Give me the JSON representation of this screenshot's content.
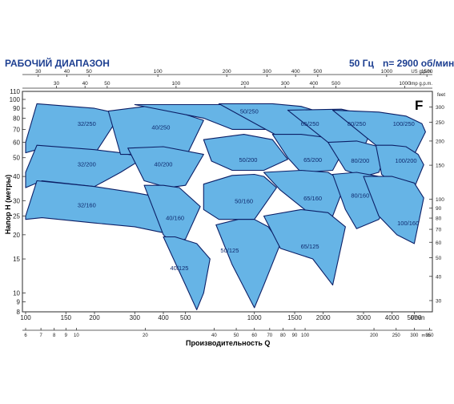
{
  "header": {
    "title": "РАБОЧИЙ ДИАПАЗОН",
    "frequency": "50 Гц",
    "speed": "n= 2900 об/мин",
    "letter": "F"
  },
  "colors": {
    "fill": "#66b4e6",
    "stroke": "#0c1f66",
    "title": "#1d3f91",
    "frame": "#2a2a2a"
  },
  "chart_data": {
    "type": "area",
    "xlabel": "Производительность Q",
    "ylabel": "Напор H (метры)",
    "x_scale": "log",
    "y_scale": "log",
    "xlim": [
      100,
      6000
    ],
    "ylim": [
      8,
      110
    ],
    "grid": false,
    "x_ticks": [
      {
        "value": 100,
        "label": "100"
      },
      {
        "value": 150,
        "label": "150"
      },
      {
        "value": 200,
        "label": "200"
      },
      {
        "value": 300,
        "label": "300"
      },
      {
        "value": 400,
        "label": "400"
      },
      {
        "value": 500,
        "label": "500"
      },
      {
        "value": 1000,
        "label": "1000"
      },
      {
        "value": 1500,
        "label": "1500"
      },
      {
        "value": 2000,
        "label": "2000"
      },
      {
        "value": 3000,
        "label": "3000"
      },
      {
        "value": 4000,
        "label": "4000"
      },
      {
        "value": 5000,
        "label": "5000"
      }
    ],
    "x_unit": "l/min",
    "x2_ticks": [
      {
        "value": 6,
        "label": "6"
      },
      {
        "value": 7,
        "label": "7"
      },
      {
        "value": 8,
        "label": "8"
      },
      {
        "value": 9,
        "label": "9"
      },
      {
        "value": 10,
        "label": "10"
      },
      {
        "value": 20,
        "label": "20"
      },
      {
        "value": 40,
        "label": "40"
      },
      {
        "value": 50,
        "label": "50"
      },
      {
        "value": 60,
        "label": "60"
      },
      {
        "value": 70,
        "label": "70"
      },
      {
        "value": 80,
        "label": "80"
      },
      {
        "value": 90,
        "label": "90"
      },
      {
        "value": 100,
        "label": "100"
      },
      {
        "value": 200,
        "label": "200"
      },
      {
        "value": 250,
        "label": "250"
      },
      {
        "value": 300,
        "label": "300"
      },
      {
        "value": 350,
        "label": "350"
      }
    ],
    "x2_unit": "m³/h",
    "top_us_ticks": [
      {
        "value": 30,
        "label": "30"
      },
      {
        "value": 40,
        "label": "40"
      },
      {
        "value": 50,
        "label": "50"
      },
      {
        "value": 100,
        "label": "100"
      },
      {
        "value": 200,
        "label": "200"
      },
      {
        "value": 300,
        "label": "300"
      },
      {
        "value": 400,
        "label": "400"
      },
      {
        "value": 500,
        "label": "500"
      },
      {
        "value": 1000,
        "label": "1000"
      },
      {
        "value": 1500,
        "label": "1500"
      }
    ],
    "top_us_unit": "US g.p.m.",
    "top_imp_ticks": [
      {
        "value": 30,
        "label": "30"
      },
      {
        "value": 40,
        "label": "40"
      },
      {
        "value": 50,
        "label": "50"
      },
      {
        "value": 100,
        "label": "100"
      },
      {
        "value": 200,
        "label": "200"
      },
      {
        "value": 300,
        "label": "300"
      },
      {
        "value": 400,
        "label": "400"
      },
      {
        "value": 500,
        "label": "500"
      },
      {
        "value": 1000,
        "label": "1000"
      }
    ],
    "top_imp_unit": "Imp g.p.m.",
    "y_ticks": [
      8,
      9,
      10,
      15,
      20,
      25,
      30,
      40,
      50,
      60,
      70,
      80,
      90,
      100,
      110
    ],
    "y2_ticks": [
      30,
      40,
      50,
      60,
      70,
      80,
      90,
      100,
      150,
      200,
      250,
      300
    ],
    "y2_unit": "feet",
    "regions": [
      {
        "name": "32/250",
        "poly": [
          [
            100,
            60
          ],
          [
            112,
            95
          ],
          [
            200,
            90
          ],
          [
            260,
            84
          ],
          [
            200,
            52
          ],
          [
            118,
            56
          ],
          [
            100,
            53
          ]
        ],
        "label": [
          185,
          75
        ]
      },
      {
        "name": "32/200",
        "poly": [
          [
            100,
            42
          ],
          [
            112,
            58
          ],
          [
            200,
            55
          ],
          [
            260,
            53
          ],
          [
            330,
            50
          ],
          [
            260,
            42
          ],
          [
            200,
            35.5
          ],
          [
            118,
            38
          ],
          [
            100,
            35
          ]
        ],
        "label": [
          185,
          46.5
        ]
      },
      {
        "name": "32/160",
        "poly": [
          [
            100,
            25
          ],
          [
            112,
            38
          ],
          [
            200,
            35.5
          ],
          [
            300,
            33
          ],
          [
            400,
            31
          ],
          [
            500,
            24
          ],
          [
            400,
            20.5
          ],
          [
            300,
            22
          ],
          [
            200,
            23
          ],
          [
            118,
            24.5
          ],
          [
            100,
            24
          ]
        ],
        "label": [
          185,
          28.5
        ]
      },
      {
        "name": "40/250",
        "poly": [
          [
            230,
            87
          ],
          [
            360,
            93
          ],
          [
            450,
            87
          ],
          [
            600,
            78
          ],
          [
            500,
            50
          ],
          [
            420,
            51
          ],
          [
            330,
            52
          ],
          [
            260,
            52
          ]
        ],
        "label": [
          390,
          72
        ]
      },
      {
        "name": "40/200",
        "poly": [
          [
            280,
            56
          ],
          [
            400,
            57
          ],
          [
            600,
            52
          ],
          [
            500,
            36
          ],
          [
            420,
            35
          ],
          [
            330,
            38
          ]
        ],
        "label": [
          400,
          46.5
        ]
      },
      {
        "name": "40/160",
        "poly": [
          [
            330,
            36
          ],
          [
            400,
            36
          ],
          [
            470,
            35
          ],
          [
            580,
            28
          ],
          [
            500,
            19
          ],
          [
            440,
            18
          ],
          [
            400,
            20
          ]
        ],
        "label": [
          450,
          24.5
        ]
      },
      {
        "name": "40/125",
        "poly": [
          [
            400,
            19.5
          ],
          [
            450,
            19.5
          ],
          [
            560,
            18
          ],
          [
            640,
            15
          ],
          [
            600,
            10
          ],
          [
            560,
            8.2
          ],
          [
            500,
            11
          ]
        ],
        "label": [
          470,
          13.5
        ]
      },
      {
        "name": "50/250",
        "poly": [
          [
            300,
            94
          ],
          [
            750,
            94
          ],
          [
            1000,
            85
          ],
          [
            1250,
            70
          ],
          [
            1000,
            70
          ],
          [
            800,
            70
          ],
          [
            600,
            80
          ]
        ],
        "label": [
          950,
          87
        ]
      },
      {
        "name": "50/200",
        "poly": [
          [
            600,
            62
          ],
          [
            900,
            66
          ],
          [
            1200,
            62
          ],
          [
            1400,
            49
          ],
          [
            1100,
            43
          ],
          [
            800,
            43
          ],
          [
            650,
            48
          ]
        ],
        "label": [
          940,
          49
        ]
      },
      {
        "name": "50/160",
        "poly": [
          [
            600,
            36.5
          ],
          [
            800,
            40.5
          ],
          [
            1000,
            41
          ],
          [
            1100,
            40
          ],
          [
            1250,
            35
          ],
          [
            1000,
            24
          ],
          [
            700,
            24
          ],
          [
            600,
            27
          ]
        ],
        "label": [
          900,
          30
        ]
      },
      {
        "name": "50/125",
        "poly": [
          [
            680,
            22.5
          ],
          [
            850,
            24
          ],
          [
            1000,
            24
          ],
          [
            1150,
            22
          ],
          [
            1300,
            18
          ],
          [
            1100,
            11
          ],
          [
            1000,
            8.4
          ],
          [
            800,
            14
          ]
        ],
        "label": [
          780,
          16.7
        ]
      },
      {
        "name": "65/250",
        "poly": [
          [
            700,
            95
          ],
          [
            1200,
            95
          ],
          [
            1600,
            92
          ],
          [
            2200,
            82
          ],
          [
            2400,
            77
          ],
          [
            2000,
            58
          ],
          [
            1500,
            58
          ],
          [
            1200,
            67
          ]
        ],
        "label": [
          1750,
          75
        ]
      },
      {
        "name": "65/200",
        "poly": [
          [
            1200,
            66
          ],
          [
            1600,
            66
          ],
          [
            2200,
            63
          ],
          [
            2500,
            57
          ],
          [
            2200,
            43
          ],
          [
            1600,
            42
          ],
          [
            1400,
            50
          ]
        ],
        "label": [
          1800,
          49
        ]
      },
      {
        "name": "65/160",
        "poly": [
          [
            1100,
            42
          ],
          [
            1600,
            43
          ],
          [
            2100,
            42
          ],
          [
            2500,
            37
          ],
          [
            2200,
            25
          ],
          [
            1800,
            25
          ],
          [
            1300,
            34
          ]
        ],
        "label": [
          1800,
          31
        ]
      },
      {
        "name": "65/125",
        "poly": [
          [
            1100,
            25
          ],
          [
            1600,
            27
          ],
          [
            2100,
            26
          ],
          [
            2500,
            22
          ],
          [
            2200,
            11
          ],
          [
            1800,
            15
          ],
          [
            1300,
            17
          ]
        ],
        "label": [
          1750,
          17.5
        ]
      },
      {
        "name": "80/250",
        "poly": [
          [
            1400,
            88
          ],
          [
            2400,
            89
          ],
          [
            3000,
            84
          ],
          [
            3400,
            78
          ],
          [
            3000,
            56
          ],
          [
            2600,
            56
          ],
          [
            2100,
            60
          ]
        ],
        "label": [
          2800,
          75
        ]
      },
      {
        "name": "80/200",
        "poly": [
          [
            2100,
            60
          ],
          [
            2800,
            61
          ],
          [
            3500,
            57
          ],
          [
            3700,
            50
          ],
          [
            3500,
            42
          ],
          [
            3000,
            40
          ],
          [
            2500,
            43
          ]
        ],
        "label": [
          2900,
          48.5
        ]
      },
      {
        "name": "80/160",
        "poly": [
          [
            2200,
            41
          ],
          [
            2800,
            42
          ],
          [
            3500,
            40
          ],
          [
            4000,
            32
          ],
          [
            3500,
            24
          ],
          [
            2800,
            21.5
          ],
          [
            2500,
            27
          ]
        ],
        "label": [
          2900,
          32
        ]
      },
      {
        "name": "100/250",
        "poly": [
          [
            2200,
            88
          ],
          [
            3500,
            86
          ],
          [
            4600,
            82
          ],
          [
            5400,
            75
          ],
          [
            5600,
            68
          ],
          [
            5000,
            52
          ],
          [
            4200,
            52
          ],
          [
            3400,
            58
          ]
        ],
        "label": [
          4500,
          75
        ]
      },
      {
        "name": "100/200",
        "poly": [
          [
            3400,
            58
          ],
          [
            4000,
            58
          ],
          [
            4600,
            57
          ],
          [
            5200,
            52
          ],
          [
            5500,
            46
          ],
          [
            5000,
            35
          ],
          [
            4200,
            35
          ],
          [
            3600,
            41
          ]
        ],
        "label": [
          4600,
          48.5
        ]
      },
      {
        "name": "100/160",
        "poly": [
          [
            3000,
            40
          ],
          [
            4000,
            40
          ],
          [
            5000,
            37
          ],
          [
            5500,
            31
          ],
          [
            5000,
            18
          ],
          [
            4200,
            20
          ],
          [
            3500,
            25
          ]
        ],
        "label": [
          4700,
          23
        ]
      }
    ]
  }
}
